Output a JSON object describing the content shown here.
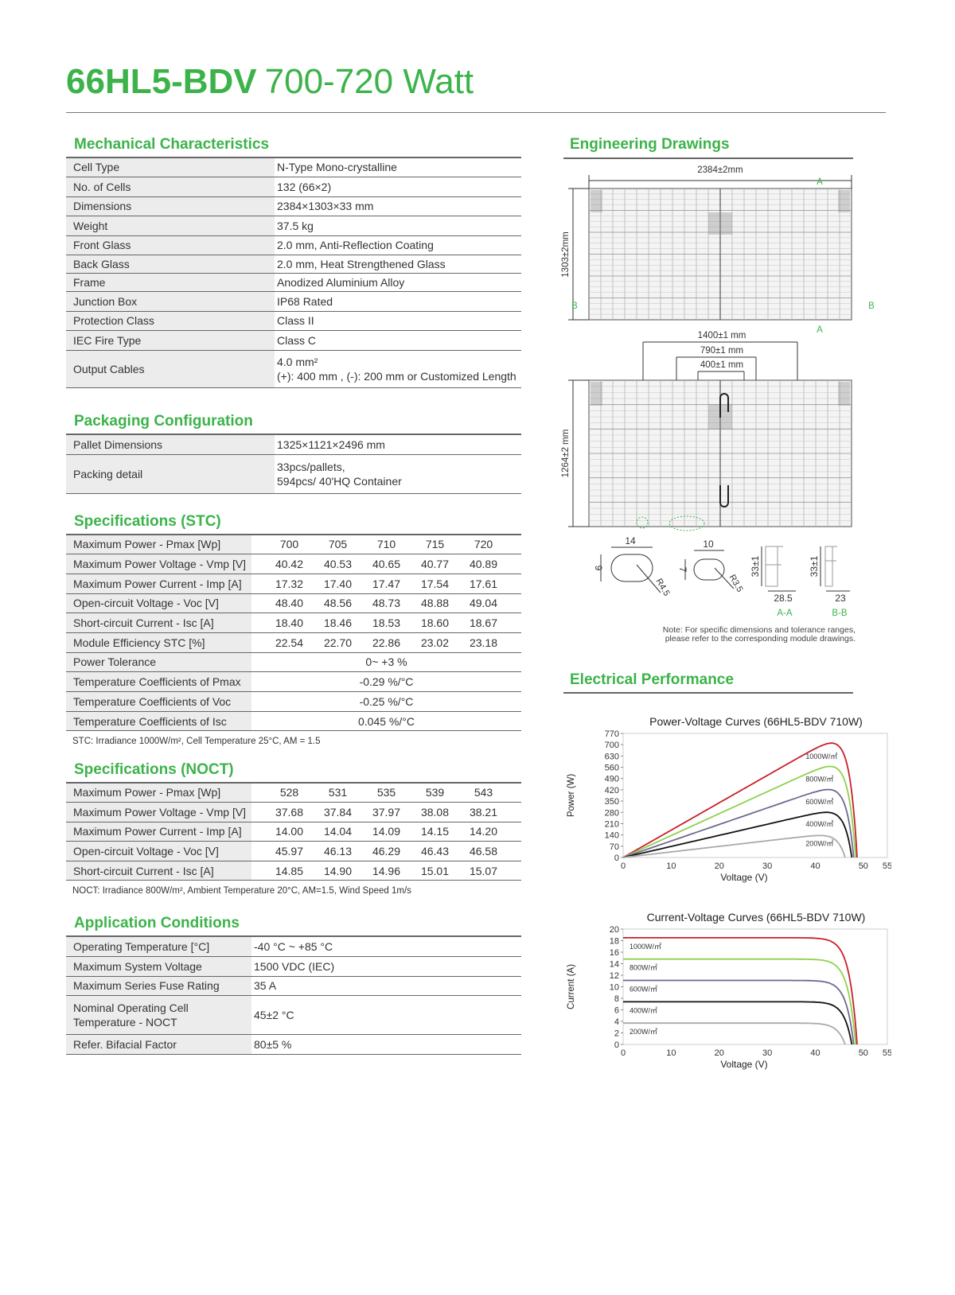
{
  "header": {
    "model": "66HL5-BDV",
    "power": "700-720 Watt"
  },
  "mechanical": {
    "title": "Mechanical Characteristics",
    "rows": [
      {
        "label": "Cell Type",
        "value": "N-Type Mono-crystalline"
      },
      {
        "label": "No. of Cells",
        "value": "132 (66×2)"
      },
      {
        "label": "Dimensions",
        "value": "2384×1303×33 mm"
      },
      {
        "label": "Weight",
        "value": "37.5 kg"
      },
      {
        "label": "Front Glass",
        "value": "2.0 mm, Anti-Reflection Coating"
      },
      {
        "label": "Back Glass",
        "value": "2.0 mm, Heat Strengthened Glass"
      },
      {
        "label": "Frame",
        "value": "Anodized Aluminium Alloy"
      },
      {
        "label": "Junction Box",
        "value": "IP68 Rated"
      },
      {
        "label": "Protection Class",
        "value": "Class II"
      },
      {
        "label": "IEC Fire Type",
        "value": "Class C"
      },
      {
        "label": "Output Cables",
        "value": "4.0 mm²",
        "value2": "(+): 400 mm , (-): 200 mm or Customized Length"
      }
    ]
  },
  "packaging": {
    "title": "Packaging Configuration",
    "rows": [
      {
        "label": "Pallet Dimensions",
        "value": "1325×1121×2496 mm"
      },
      {
        "label": "Packing detail",
        "value": "33pcs/pallets,",
        "value2": "594pcs/ 40'HQ Container"
      }
    ]
  },
  "stc": {
    "title": "Specifications (STC)",
    "rows": [
      {
        "label": "Maximum Power - Pmax [Wp]",
        "values": [
          "700",
          "705",
          "710",
          "715",
          "720"
        ]
      },
      {
        "label": "Maximum Power Voltage - Vmp [V]",
        "values": [
          "40.42",
          "40.53",
          "40.65",
          "40.77",
          "40.89"
        ]
      },
      {
        "label": "Maximum Power Current - Imp [A]",
        "values": [
          "17.32",
          "17.40",
          "17.47",
          "17.54",
          "17.61"
        ]
      },
      {
        "label": "Open-circuit Voltage - Voc [V]",
        "values": [
          "48.40",
          "48.56",
          "48.73",
          "48.88",
          "49.04"
        ]
      },
      {
        "label": "Short-circuit Current - Isc [A]",
        "values": [
          "18.40",
          "18.46",
          "18.53",
          "18.60",
          "18.67"
        ]
      },
      {
        "label": "Module Efficiency STC [%]",
        "values": [
          "22.54",
          "22.70",
          "22.86",
          "23.02",
          "23.18"
        ]
      },
      {
        "label": "Power Tolerance",
        "span": "0~ +3 %"
      },
      {
        "label": "Temperature Coefficients of Pmax",
        "span": "-0.29 %/°C"
      },
      {
        "label": "Temperature Coefficients of Voc",
        "span": "-0.25 %/°C"
      },
      {
        "label": "Temperature Coefficients of Isc",
        "span": "0.045 %/°C"
      }
    ],
    "note": "STC: Irradiance 1000W/m², Cell Temperature 25°C, AM = 1.5"
  },
  "noct": {
    "title": "Specifications (NOCT)",
    "rows": [
      {
        "label": "Maximum Power - Pmax [Wp]",
        "values": [
          "528",
          "531",
          "535",
          "539",
          "543"
        ]
      },
      {
        "label": "Maximum Power Voltage - Vmp [V]",
        "values": [
          "37.68",
          "37.84",
          "37.97",
          "38.08",
          "38.21"
        ]
      },
      {
        "label": "Maximum Power Current - Imp [A]",
        "values": [
          "14.00",
          "14.04",
          "14.09",
          "14.15",
          "14.20"
        ]
      },
      {
        "label": "Open-circuit Voltage - Voc [V]",
        "values": [
          "45.97",
          "46.13",
          "46.29",
          "46.43",
          "46.58"
        ]
      },
      {
        "label": "Short-circuit Current - Isc [A]",
        "values": [
          "14.85",
          "14.90",
          "14.96",
          "15.01",
          "15.07"
        ]
      }
    ],
    "note": "NOCT: Irradiance 800W/m², Ambient Temperature 20°C, AM=1.5, Wind Speed 1m/s"
  },
  "application": {
    "title": "Application Conditions",
    "rows": [
      {
        "label": "Operating Temperature [°C]",
        "value": "-40 °C ~ +85 °C"
      },
      {
        "label": "Maximum System Voltage",
        "value": "1500 VDC (IEC)"
      },
      {
        "label": "Maximum Series Fuse Rating",
        "value": "35 A"
      },
      {
        "label": "Nominal Operating Cell",
        "label2": "Temperature - NOCT",
        "value": "45±2 °C"
      },
      {
        "label": "Refer. Bifacial Factor",
        "value": "80±5 %"
      }
    ]
  },
  "engineering": {
    "title": "Engineering Drawings",
    "dims": {
      "width": "2384±2mm",
      "height": "1303±2mm",
      "d1400": "1400±1 mm",
      "d790": "790±1 mm",
      "d400": "400±1 mm",
      "h1264": "1264±2 mm",
      "hole1_w": "14",
      "hole1_h": "9",
      "hole1_r": "R4.5",
      "hole2_w": "10",
      "hole2_h": "7",
      "hole2_r": "R3.5",
      "aa_h": "33±1",
      "aa_w": "28.5",
      "bb_h": "33±1",
      "bb_w": "23"
    },
    "markers": {
      "a": "A",
      "b": "B",
      "aa": "A-A",
      "bb": "B-B"
    },
    "note": "Note: For specific dimensions and tolerance ranges, please refer to the corresponding module drawings."
  },
  "electrical": {
    "title": "Electrical Performance"
  },
  "chart_data": [
    {
      "type": "line",
      "title": "Power-Voltage Curves (66HL5-BDV 710W)",
      "xlabel": "Voltage (V)",
      "ylabel": "Power (W)",
      "xlim": [
        0,
        55
      ],
      "ylim": [
        0,
        770
      ],
      "xticks": [
        "0",
        "10",
        "20",
        "30",
        "40",
        "50",
        "55"
      ],
      "yticks": [
        "0",
        "70",
        "140",
        "210",
        "280",
        "350",
        "420",
        "490",
        "560",
        "630",
        "700",
        "770"
      ],
      "series": [
        {
          "name": "1000W/㎡",
          "color": "#c8202a",
          "isc": 18.5,
          "voc": 48.7,
          "pmax": 710
        },
        {
          "name": "800W/㎡",
          "color": "#8fd14f",
          "isc": 14.8,
          "voc": 48.4,
          "pmax": 570
        },
        {
          "name": "600W/㎡",
          "color": "#6d6a8e",
          "isc": 11.1,
          "voc": 48.0,
          "pmax": 430
        },
        {
          "name": "400W/㎡",
          "color": "#111111",
          "isc": 7.4,
          "voc": 47.6,
          "pmax": 290
        },
        {
          "name": "200W/㎡",
          "color": "#aaaaaa",
          "isc": 3.7,
          "voc": 46.2,
          "pmax": 145
        }
      ]
    },
    {
      "type": "line",
      "title": "Current-Voltage Curves (66HL5-BDV 710W)",
      "xlabel": "Voltage (V)",
      "ylabel": "Current (A)",
      "xlim": [
        0,
        55
      ],
      "ylim": [
        0,
        20
      ],
      "xticks": [
        "0",
        "10",
        "20",
        "30",
        "40",
        "50",
        "55"
      ],
      "yticks": [
        "0",
        "2",
        "4",
        "6",
        "8",
        "10",
        "12",
        "14",
        "16",
        "18",
        "20"
      ],
      "series": [
        {
          "name": "1000W/㎡",
          "color": "#c8202a",
          "isc": 18.5,
          "voc": 48.7
        },
        {
          "name": "800W/㎡",
          "color": "#8fd14f",
          "isc": 14.8,
          "voc": 48.4
        },
        {
          "name": "600W/㎡",
          "color": "#6d6a8e",
          "isc": 11.1,
          "voc": 48.0
        },
        {
          "name": "400W/㎡",
          "color": "#111111",
          "isc": 7.4,
          "voc": 47.6
        },
        {
          "name": "200W/㎡",
          "color": "#aaaaaa",
          "isc": 3.7,
          "voc": 46.2
        }
      ]
    }
  ]
}
